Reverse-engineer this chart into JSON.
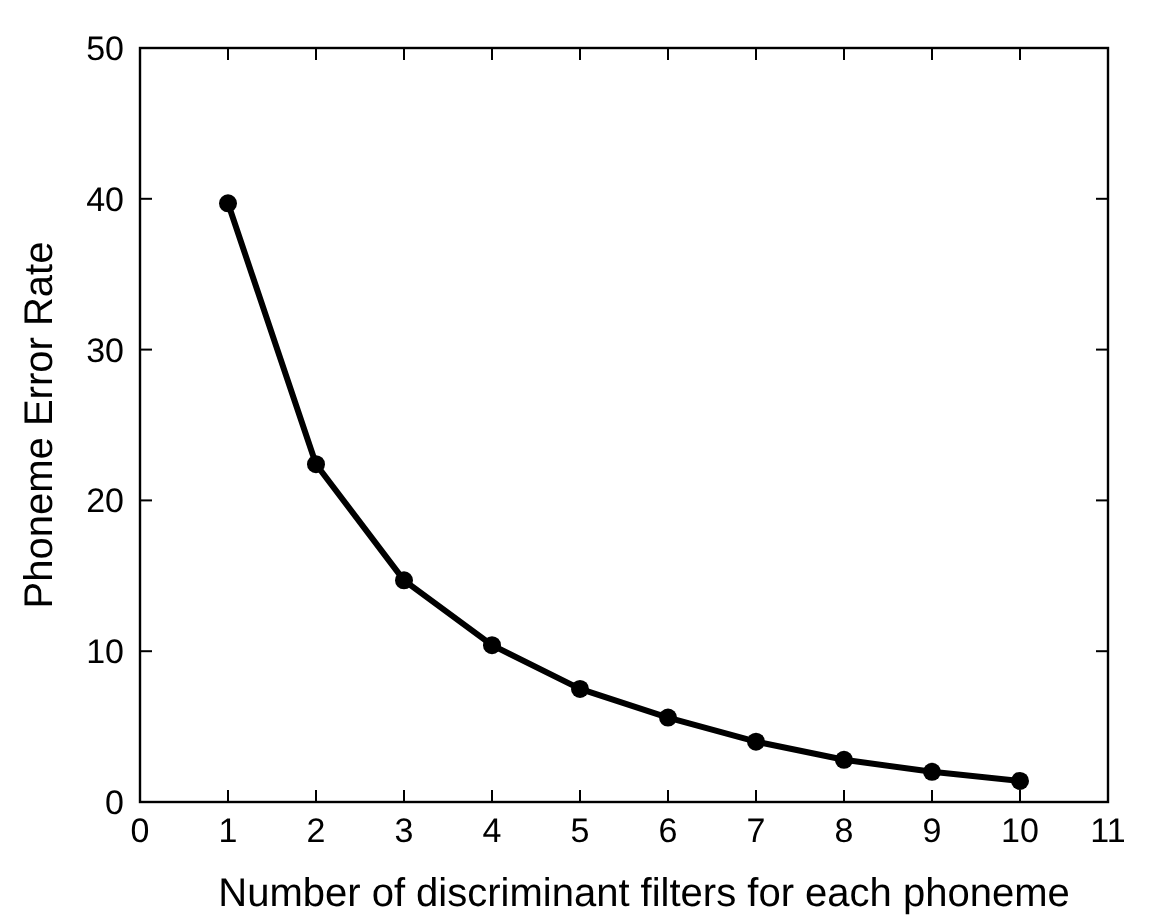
{
  "chart_data": {
    "type": "line",
    "xlabel": "Number of discriminant filters for each phoneme",
    "ylabel": "Phoneme Error Rate",
    "x": [
      1,
      2,
      3,
      4,
      5,
      6,
      7,
      8,
      9,
      10
    ],
    "series": [
      {
        "color": "#000000",
        "values": [
          39.7,
          22.4,
          14.7,
          10.4,
          7.5,
          5.6,
          4.0,
          2.8,
          2.0,
          1.4
        ]
      }
    ],
    "xlim": [
      0,
      11
    ],
    "xticks": [
      0,
      1,
      2,
      3,
      4,
      5,
      6,
      7,
      8,
      9,
      10,
      11
    ],
    "ylim": [
      0,
      50
    ],
    "yticks": [
      0,
      10,
      20,
      30,
      40,
      50
    ],
    "marker": "circle",
    "line_style": "solid"
  }
}
